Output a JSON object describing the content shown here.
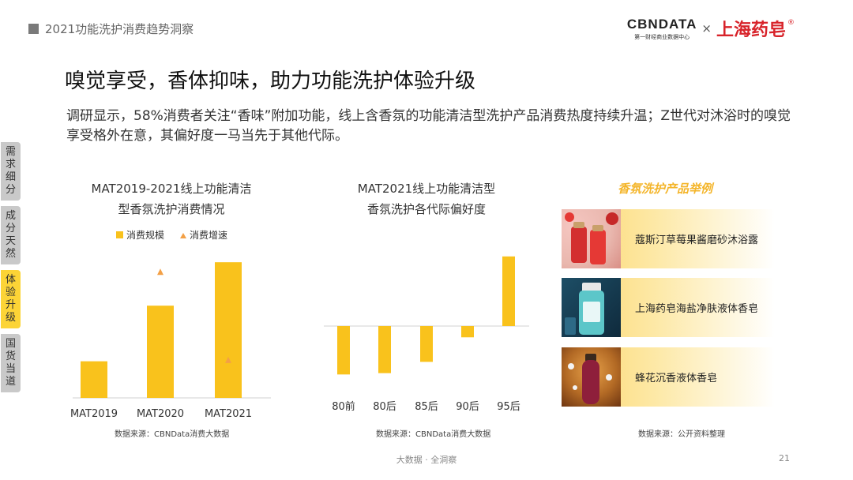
{
  "header": {
    "report_title": "2021功能洗护消费趋势洞察"
  },
  "brand": {
    "cbn_main": "CBNDATA",
    "cbn_sub": "第一财经商业数据中心",
    "times": "×",
    "partner": "上海药皂",
    "reg": "®"
  },
  "slide": {
    "title": "嗅觉享受，香体抑味，助力功能洗护体验升级",
    "description": "调研显示，58%消费者关注“香味”附加功能，线上含香氛的功能清洁型洗护产品消费热度持续升温；Z世代对沐浴时的嗅觉享受格外在意，其偏好度一马当先于其他代际。"
  },
  "sidenav": [
    {
      "label": [
        "需",
        "求",
        "细",
        "分"
      ],
      "active": false
    },
    {
      "label": [
        "成",
        "分",
        "天",
        "然"
      ],
      "active": false
    },
    {
      "label": [
        "体",
        "验",
        "升",
        "级"
      ],
      "active": true
    },
    {
      "label": [
        "国",
        "货",
        "当",
        "道"
      ],
      "active": false
    }
  ],
  "colors": {
    "accent": "#f9c21c",
    "triangle": "#f3a046",
    "nav_active": "#fcd436",
    "nav_inactive": "#c9c9c9"
  },
  "chart_data": [
    {
      "type": "bar",
      "title_line1": "MAT2019-2021线上功能清洁",
      "title_line2": "型香氛洗护消费情况",
      "categories": [
        "MAT2019",
        "MAT2020",
        "MAT2021"
      ],
      "legend": [
        "消费规模",
        "消费增速"
      ],
      "series": [
        {
          "name": "消费规模",
          "marker": "bar",
          "values": [
            27,
            68,
            100
          ]
        },
        {
          "name": "消费增速",
          "marker": "triangle",
          "values": [
            null,
            93,
            28
          ]
        }
      ],
      "ylim": [
        0,
        110
      ],
      "source": "数据来源：CBNData消费大数据"
    },
    {
      "type": "bar",
      "title_line1": "MAT2021线上功能清洁型",
      "title_line2": "香氛洗护各代际偏好度",
      "categories": [
        "80前",
        "80后",
        "85后",
        "90后",
        "95后"
      ],
      "series": [
        {
          "values": [
            -73,
            -71,
            -54,
            -17,
            105
          ]
        }
      ],
      "ylim": [
        -90,
        125
      ],
      "source": "数据来源：CBNData消费大数据"
    }
  ],
  "examples": {
    "title": "香氛洗护产品举例",
    "items": [
      {
        "label": "蔻斯汀草莓果酱磨砂沐浴露",
        "icon": "strawberry-bodywash-photo"
      },
      {
        "label": "上海药皂海盐净肤液体香皂",
        "icon": "sea-salt-soap-photo"
      },
      {
        "label": "蜂花沉香液体香皂",
        "icon": "agarwood-soap-photo"
      }
    ],
    "source": "数据来源：公开资料整理"
  },
  "footer": {
    "text": "大数据 · 全洞察",
    "page": "21"
  }
}
